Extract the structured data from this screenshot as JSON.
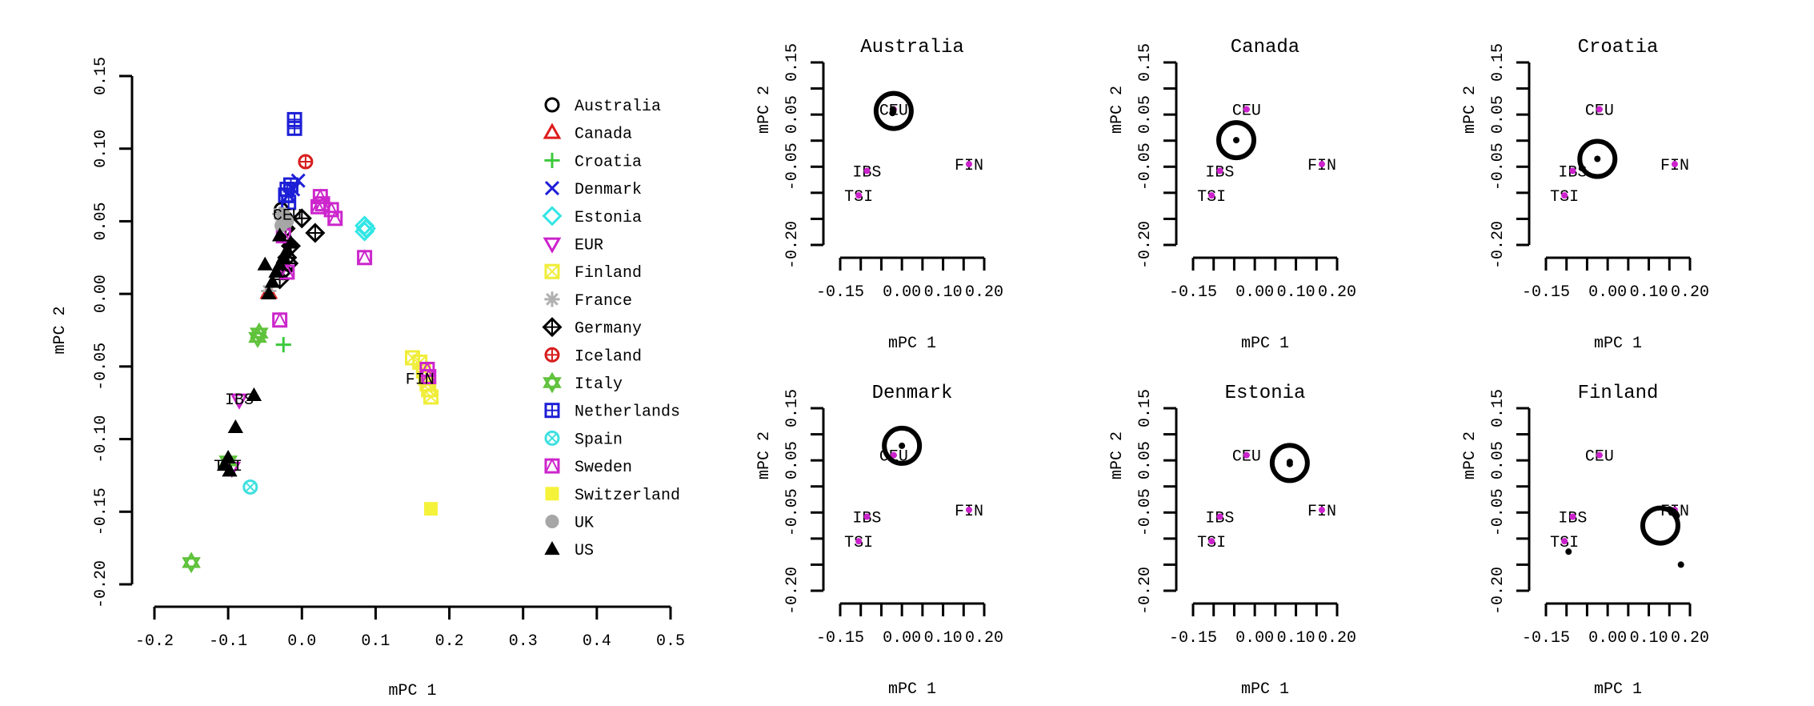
{
  "chart_data": [
    {
      "type": "scatter",
      "xlabel": "mPC 1",
      "ylabel": "mPC 2",
      "xlim": [
        -0.2,
        0.5
      ],
      "ylim": [
        -0.2,
        0.15
      ],
      "xticks": [
        "-0.2",
        "-0.1",
        "0.0",
        "0.1",
        "0.2",
        "0.3",
        "0.4",
        "0.5"
      ],
      "yticks": [
        "-0.20",
        "-0.15",
        "-0.10",
        "-0.05",
        "0.00",
        "0.05",
        "0.10",
        "0.15"
      ],
      "legend_position": "right",
      "legend": [
        {
          "name": "Australia",
          "symbol": "circle",
          "color": "#000000"
        },
        {
          "name": "Canada",
          "symbol": "triangle",
          "color": "#df1b1b"
        },
        {
          "name": "Croatia",
          "symbol": "plus",
          "color": "#3cc93c"
        },
        {
          "name": "Denmark",
          "symbol": "x",
          "color": "#1f1fd8"
        },
        {
          "name": "Estonia",
          "symbol": "diamond",
          "color": "#33e5e5"
        },
        {
          "name": "EUR",
          "symbol": "triangle-down",
          "color": "#cc22cc"
        },
        {
          "name": "Finland",
          "symbol": "square-x",
          "color": "#f0ed3a"
        },
        {
          "name": "France",
          "symbol": "asterisk",
          "color": "#b0b0b0"
        },
        {
          "name": "Germany",
          "symbol": "diamond-plus",
          "color": "#000000"
        },
        {
          "name": "Iceland",
          "symbol": "circle-plus",
          "color": "#d71e1e"
        },
        {
          "name": "Italy",
          "symbol": "star-of-david",
          "color": "#5fc23b"
        },
        {
          "name": "Netherlands",
          "symbol": "square-plus",
          "color": "#1d1fd6"
        },
        {
          "name": "Spain",
          "symbol": "circle-x",
          "color": "#3fe0e0"
        },
        {
          "name": "Sweden",
          "symbol": "square-triangle",
          "color": "#cc26cc"
        },
        {
          "name": "Switzerland",
          "symbol": "filled-square",
          "color": "#f5f23a"
        },
        {
          "name": "UK",
          "symbol": "filled-circle",
          "color": "#a6a6a6"
        },
        {
          "name": "US",
          "symbol": "filled-triangle",
          "color": "#000000"
        }
      ],
      "reference_labels": [
        {
          "text": "CEU",
          "x": -0.02,
          "y": 0.055
        },
        {
          "text": "IBS",
          "x": -0.085,
          "y": -0.072
        },
        {
          "text": "TSI",
          "x": -0.1,
          "y": -0.118
        },
        {
          "text": "FIN",
          "x": 0.16,
          "y": -0.058
        }
      ],
      "series": [
        {
          "name": "Australia",
          "points": [
            [
              -0.028,
              0.058
            ],
            [
              -0.022,
              0.052
            ]
          ]
        },
        {
          "name": "Canada",
          "points": [
            [
              -0.045,
              0.001
            ]
          ]
        },
        {
          "name": "Croatia",
          "points": [
            [
              -0.025,
              -0.035
            ]
          ]
        },
        {
          "name": "Denmark",
          "points": [
            [
              -0.005,
              0.078
            ],
            [
              -0.012,
              0.072
            ],
            [
              -0.018,
              0.068
            ]
          ]
        },
        {
          "name": "Estonia",
          "points": [
            [
              0.085,
              0.047
            ],
            [
              0.087,
              0.045
            ],
            [
              0.085,
              0.043
            ]
          ]
        },
        {
          "name": "EUR",
          "points": [
            [
              -0.085,
              -0.073
            ],
            [
              -0.095,
              -0.12
            ]
          ]
        },
        {
          "name": "Finland",
          "points": [
            [
              0.15,
              -0.044
            ],
            [
              0.16,
              -0.047
            ],
            [
              0.165,
              -0.053
            ],
            [
              0.168,
              -0.058
            ],
            [
              0.17,
              -0.062
            ],
            [
              0.172,
              -0.066
            ],
            [
              0.175,
              -0.071
            ]
          ]
        },
        {
          "name": "France",
          "points": [
            [
              -0.045,
              0.002
            ],
            [
              -0.03,
              0.055
            ],
            [
              -0.025,
              0.05
            ]
          ]
        },
        {
          "name": "Germany",
          "points": [
            [
              0.0,
              0.052
            ],
            [
              0.018,
              0.042
            ],
            [
              -0.022,
              0.045
            ],
            [
              -0.015,
              0.033
            ],
            [
              -0.02,
              0.025
            ],
            [
              -0.025,
              0.016
            ],
            [
              -0.018,
              0.021
            ],
            [
              -0.03,
              0.01
            ]
          ]
        },
        {
          "name": "Iceland",
          "points": [
            [
              0.005,
              0.091
            ]
          ]
        },
        {
          "name": "Italy",
          "points": [
            [
              -0.058,
              -0.027
            ],
            [
              -0.06,
              -0.03
            ],
            [
              -0.1,
              -0.115
            ],
            [
              -0.15,
              -0.185
            ]
          ]
        },
        {
          "name": "Netherlands",
          "points": [
            [
              -0.01,
              0.12
            ],
            [
              -0.01,
              0.114
            ],
            [
              -0.015,
              0.075
            ],
            [
              -0.02,
              0.072
            ],
            [
              -0.022,
              0.068
            ],
            [
              -0.018,
              0.063
            ]
          ]
        },
        {
          "name": "Spain",
          "points": [
            [
              -0.07,
              -0.133
            ]
          ]
        },
        {
          "name": "Sweden",
          "points": [
            [
              -0.03,
              -0.018
            ],
            [
              -0.02,
              0.015
            ],
            [
              -0.025,
              0.04
            ],
            [
              0.025,
              0.067
            ],
            [
              0.028,
              0.062
            ],
            [
              0.04,
              0.058
            ],
            [
              0.022,
              0.06
            ],
            [
              0.045,
              0.052
            ],
            [
              0.085,
              0.025
            ],
            [
              0.17,
              -0.052
            ],
            [
              0.172,
              -0.057
            ]
          ]
        },
        {
          "name": "Switzerland",
          "points": [
            [
              0.175,
              -0.148
            ]
          ]
        },
        {
          "name": "UK",
          "points": [
            [
              -0.025,
              0.055
            ],
            [
              -0.02,
              0.05
            ],
            [
              -0.028,
              0.047
            ]
          ]
        },
        {
          "name": "US",
          "points": [
            [
              -0.045,
              0.0
            ],
            [
              -0.04,
              0.008
            ],
            [
              -0.035,
              0.015
            ],
            [
              -0.03,
              0.02
            ],
            [
              -0.025,
              0.025
            ],
            [
              -0.02,
              0.03
            ],
            [
              -0.015,
              0.035
            ],
            [
              -0.03,
              0.04
            ],
            [
              -0.05,
              0.02
            ],
            [
              -0.065,
              -0.07
            ],
            [
              -0.09,
              -0.092
            ],
            [
              -0.1,
              -0.113
            ],
            [
              -0.105,
              -0.118
            ],
            [
              -0.098,
              -0.122
            ]
          ]
        }
      ]
    },
    {
      "type": "scatter",
      "title": "Australia",
      "xlabel": "mPC 1",
      "ylabel": "mPC 2",
      "xlim": [
        -0.15,
        0.2
      ],
      "ylim": [
        -0.2,
        0.15
      ],
      "xticks": [
        "-0.15",
        "0.00",
        "0.10",
        "0.20"
      ],
      "yticks": [
        "-0.20",
        "-0.05",
        "0.05",
        "0.15"
      ],
      "reference_labels": [
        {
          "text": "CEU",
          "x": -0.02,
          "y": 0.06
        },
        {
          "text": "IBS",
          "x": -0.085,
          "y": -0.058
        },
        {
          "text": "TSI",
          "x": -0.105,
          "y": -0.105
        },
        {
          "text": "FIN",
          "x": 0.163,
          "y": -0.045
        }
      ],
      "circle_center": [
        -0.02,
        0.057
      ],
      "points": [
        [
          -0.022,
          0.06
        ],
        [
          -0.021,
          0.056
        ],
        [
          -0.023,
          0.053
        ]
      ]
    },
    {
      "type": "scatter",
      "title": "Canada",
      "xlabel": "mPC 1",
      "ylabel": "mPC 2",
      "xlim": [
        -0.15,
        0.2
      ],
      "ylim": [
        -0.2,
        0.15
      ],
      "xticks": [
        "-0.15",
        "0.00",
        "0.10",
        "0.20"
      ],
      "yticks": [
        "-0.20",
        "-0.05",
        "0.05",
        "0.15"
      ],
      "reference_labels": [
        {
          "text": "CEU",
          "x": -0.02,
          "y": 0.06
        },
        {
          "text": "IBS",
          "x": -0.085,
          "y": -0.058
        },
        {
          "text": "TSI",
          "x": -0.105,
          "y": -0.105
        },
        {
          "text": "FIN",
          "x": 0.163,
          "y": -0.045
        }
      ],
      "circle_center": [
        -0.045,
        0.001
      ],
      "points": [
        [
          -0.045,
          0.001
        ]
      ]
    },
    {
      "type": "scatter",
      "title": "Croatia",
      "xlabel": "mPC 1",
      "ylabel": "mPC 2",
      "xlim": [
        -0.15,
        0.2
      ],
      "ylim": [
        -0.2,
        0.15
      ],
      "xticks": [
        "-0.15",
        "0.00",
        "0.10",
        "0.20"
      ],
      "yticks": [
        "-0.20",
        "-0.05",
        "0.05",
        "0.15"
      ],
      "reference_labels": [
        {
          "text": "CEU",
          "x": -0.02,
          "y": 0.06
        },
        {
          "text": "IBS",
          "x": -0.085,
          "y": -0.058
        },
        {
          "text": "TSI",
          "x": -0.105,
          "y": -0.105
        },
        {
          "text": "FIN",
          "x": 0.163,
          "y": -0.045
        }
      ],
      "circle_center": [
        -0.025,
        -0.035
      ],
      "points": [
        [
          -0.025,
          -0.035
        ]
      ]
    },
    {
      "type": "scatter",
      "title": "Denmark",
      "xlabel": "mPC 1",
      "ylabel": "mPC 2",
      "xlim": [
        -0.15,
        0.2
      ],
      "ylim": [
        -0.2,
        0.15
      ],
      "xticks": [
        "-0.15",
        "0.00",
        "0.10",
        "0.20"
      ],
      "yticks": [
        "-0.20",
        "-0.05",
        "0.05",
        "0.15"
      ],
      "reference_labels": [
        {
          "text": "CEU",
          "x": -0.02,
          "y": 0.06
        },
        {
          "text": "IBS",
          "x": -0.085,
          "y": -0.058
        },
        {
          "text": "TSI",
          "x": -0.105,
          "y": -0.105
        },
        {
          "text": "FIN",
          "x": 0.163,
          "y": -0.045
        }
      ],
      "circle_center": [
        0.0,
        0.078
      ],
      "points": [
        [
          0.0,
          0.078
        ]
      ]
    },
    {
      "type": "scatter",
      "title": "Estonia",
      "xlabel": "mPC 1",
      "ylabel": "mPC 2",
      "xlim": [
        -0.15,
        0.2
      ],
      "ylim": [
        -0.2,
        0.15
      ],
      "xticks": [
        "-0.15",
        "0.00",
        "0.10",
        "0.20"
      ],
      "yticks": [
        "-0.20",
        "-0.05",
        "0.05",
        "0.15"
      ],
      "reference_labels": [
        {
          "text": "CEU",
          "x": -0.02,
          "y": 0.06
        },
        {
          "text": "IBS",
          "x": -0.085,
          "y": -0.058
        },
        {
          "text": "TSI",
          "x": -0.105,
          "y": -0.105
        },
        {
          "text": "FIN",
          "x": 0.163,
          "y": -0.045
        }
      ],
      "circle_center": [
        0.085,
        0.045
      ],
      "points": [
        [
          0.085,
          0.047
        ],
        [
          0.085,
          0.043
        ]
      ]
    },
    {
      "type": "scatter",
      "title": "Finland",
      "xlabel": "mPC 1",
      "ylabel": "mPC 2",
      "xlim": [
        -0.15,
        0.2
      ],
      "ylim": [
        -0.2,
        0.15
      ],
      "xticks": [
        "-0.15",
        "0.00",
        "0.10",
        "0.20"
      ],
      "yticks": [
        "-0.20",
        "-0.05",
        "0.05",
        "0.15"
      ],
      "reference_labels": [
        {
          "text": "CEU",
          "x": -0.02,
          "y": 0.06
        },
        {
          "text": "IBS",
          "x": -0.085,
          "y": -0.058
        },
        {
          "text": "TSI",
          "x": -0.105,
          "y": -0.105
        },
        {
          "text": "FIN",
          "x": 0.163,
          "y": -0.045
        }
      ],
      "circle_center": [
        0.128,
        -0.075
      ],
      "points": [
        [
          0.15,
          -0.044
        ],
        [
          0.155,
          -0.046
        ],
        [
          0.16,
          -0.048
        ],
        [
          0.165,
          -0.052
        ],
        [
          0.168,
          -0.056
        ],
        [
          0.155,
          -0.05
        ],
        [
          0.178,
          -0.15
        ],
        [
          -0.095,
          -0.125
        ]
      ]
    }
  ]
}
